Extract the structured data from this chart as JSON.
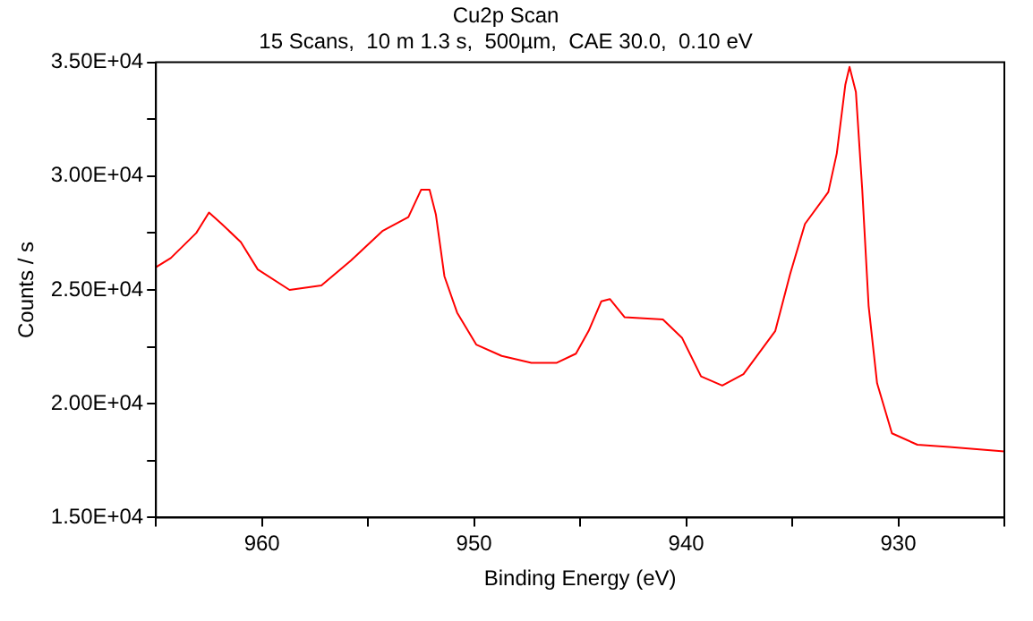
{
  "chart_data": {
    "type": "line",
    "title": "Cu2p Scan",
    "subtitle": "15 Scans,  10 m 1.3 s,  500µm,  CAE 30.0,  0.10 eV",
    "xlabel": "Binding Energy (eV)",
    "ylabel": "Counts / s",
    "xlim": [
      965,
      925
    ],
    "xticks": [
      {
        "value": 965,
        "label": null
      },
      960,
      {
        "value": 955,
        "label": null
      },
      950,
      {
        "value": 945,
        "label": null
      },
      940,
      {
        "value": 935,
        "label": null
      },
      930,
      {
        "value": 925,
        "label": null
      }
    ],
    "ylim": [
      15000,
      35000
    ],
    "yticks": [
      {
        "value": 15000,
        "label": "1.50E+04"
      },
      {
        "value": 17500,
        "label": null
      },
      {
        "value": 20000,
        "label": "2.00E+04"
      },
      {
        "value": 22500,
        "label": null
      },
      {
        "value": 25000,
        "label": "2.50E+04"
      },
      {
        "value": 27500,
        "label": null
      },
      {
        "value": 30000,
        "label": "3.00E+04"
      },
      {
        "value": 32500,
        "label": null
      },
      {
        "value": 35000,
        "label": "3.50E+04"
      }
    ],
    "grid": false,
    "legend": false,
    "marker": "none",
    "line_style": "solid",
    "series": [
      {
        "color": "#ff0000",
        "x": [
          965,
          964.3,
          963.1,
          962.5,
          961.9,
          961,
          960.2,
          958.7,
          957.2,
          955.8,
          954.3,
          953.1,
          952.5,
          952.1,
          951.8,
          951.4,
          950.8,
          949.9,
          948.7,
          947.3,
          946.1,
          945.2,
          944.6,
          944,
          943.6,
          942.9,
          941.1,
          940.2,
          939.3,
          938.3,
          937.3,
          935.8,
          935.1,
          934.4,
          933.3,
          932.9,
          932.5,
          932.3,
          932,
          931.7,
          931.4,
          931,
          930.3,
          929.1,
          927.6,
          925
        ],
        "values": [
          26000,
          26400,
          27500,
          28400,
          27900,
          27100,
          25900,
          25000,
          25200,
          26300,
          27600,
          28200,
          29400,
          29400,
          28300,
          25600,
          24000,
          22600,
          22100,
          21800,
          21800,
          22200,
          23200,
          24500,
          24600,
          23800,
          23700,
          22900,
          21200,
          20800,
          21300,
          23200,
          25700,
          27900,
          29300,
          31000,
          34000,
          34800,
          33700,
          29400,
          24300,
          20900,
          18700,
          18200,
          18100,
          17900
        ]
      }
    ]
  }
}
